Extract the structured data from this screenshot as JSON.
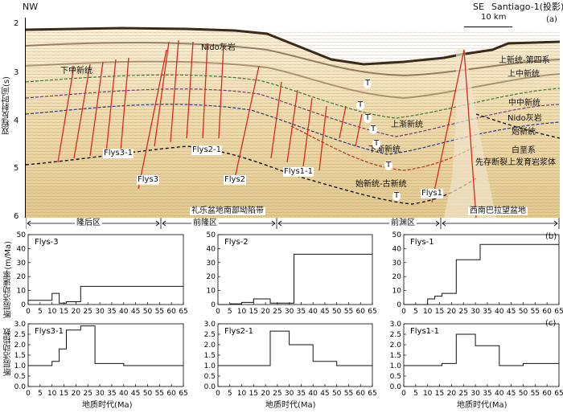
{
  "section_a": {
    "label_nw": "NW",
    "label_se": "SE",
    "label_well": "Santiago-1(投影)",
    "panel_tag": "(a)",
    "scale_label": "10 km",
    "y_axis_label": "双程反射时间(s)",
    "y_ticks": [
      "2",
      "3",
      "4",
      "5",
      "6"
    ],
    "horizon_labels": [
      "上新统-第四系",
      "上中新统",
      "中中新统",
      "Nido灰岩",
      "始新统",
      "白垩系",
      "先存断裂上发育岩浆体"
    ],
    "interior_labels": [
      "Nido灰岩",
      "下中新统",
      "上渐新统",
      "下渐新统",
      "始新统-古新统"
    ],
    "t_labels": [
      "T",
      "T",
      "T",
      "T",
      "T",
      "T",
      "T"
    ],
    "fault_labels": [
      "Flys3-1",
      "Flys3",
      "Flys2-1",
      "Flys2",
      "Flys1-1",
      "Flys1"
    ],
    "zone_labels": [
      "隆后区",
      "前隆区",
      "礼乐盆地南部坳陷带",
      "前渊区",
      "西南巴拉望盆地"
    ]
  },
  "section_b": {
    "panel_tag": "(b)",
    "y_axis_label": "断层活动速率(m/Ma)"
  },
  "section_c": {
    "panel_tag": "(c)",
    "y_axis_label": "断层活动指数",
    "x_axis_label": "地质时代(Ma)"
  },
  "chart_data": [
    {
      "type": "line",
      "title": "Flys-3",
      "panel": "b",
      "x": [
        0,
        10,
        10,
        13,
        13,
        16,
        16,
        22,
        22,
        65
      ],
      "y": [
        3,
        3,
        8,
        8,
        1,
        1,
        2,
        2,
        13,
        13
      ],
      "xlim": [
        0,
        65
      ],
      "ylim": [
        0,
        50
      ],
      "xticks": [
        0,
        5,
        10,
        15,
        20,
        25,
        30,
        35,
        40,
        45,
        50,
        55,
        60,
        65
      ],
      "yticks": [
        0,
        10,
        20,
        30,
        40,
        50
      ]
    },
    {
      "type": "line",
      "title": "Flys-2",
      "panel": "b",
      "x": [
        0,
        5,
        5,
        10,
        10,
        15,
        15,
        22,
        22,
        25,
        25,
        32,
        32,
        65
      ],
      "y": [
        0,
        0,
        0.5,
        0.5,
        1.5,
        1.5,
        4,
        4,
        1,
        1,
        1,
        1,
        36,
        36
      ],
      "xlim": [
        0,
        65
      ],
      "ylim": [
        0,
        50
      ],
      "xticks": [
        0,
        5,
        10,
        15,
        20,
        25,
        30,
        35,
        40,
        45,
        50,
        55,
        60,
        65
      ],
      "yticks": [
        0,
        10,
        20,
        30,
        40,
        50
      ]
    },
    {
      "type": "line",
      "title": "Flys-1",
      "panel": "b",
      "x": [
        0,
        10,
        10,
        13,
        13,
        16,
        16,
        22,
        22,
        32,
        32,
        65
      ],
      "y": [
        0,
        0,
        4,
        4,
        6,
        6,
        8,
        8,
        32,
        32,
        43,
        43
      ],
      "xlim": [
        0,
        65
      ],
      "ylim": [
        0,
        50
      ],
      "xticks": [
        0,
        5,
        10,
        15,
        20,
        25,
        30,
        35,
        40,
        45,
        50,
        55,
        60,
        65
      ],
      "yticks": [
        0,
        10,
        20,
        30,
        40,
        50
      ]
    },
    {
      "type": "line",
      "title": "Flys3-1",
      "panel": "c",
      "x": [
        0,
        10,
        10,
        13,
        13,
        16,
        16,
        22,
        22,
        28,
        28,
        40,
        40,
        50,
        50,
        65
      ],
      "y": [
        1.0,
        1.0,
        1.2,
        1.2,
        1.8,
        1.8,
        2.7,
        2.7,
        2.9,
        2.9,
        1.1,
        1.1,
        1.0,
        1.0,
        1.0,
        1.0
      ],
      "xlim": [
        0,
        65
      ],
      "ylim": [
        0,
        3.0
      ],
      "xticks": [
        0,
        5,
        10,
        15,
        20,
        25,
        30,
        35,
        40,
        45,
        50,
        55,
        60,
        65
      ],
      "yticks": [
        0,
        0.5,
        1.0,
        1.5,
        2.0,
        2.5,
        3.0
      ]
    },
    {
      "type": "line",
      "title": "Flys2-1",
      "panel": "c",
      "x": [
        0,
        22,
        22,
        30,
        30,
        40,
        40,
        50,
        50,
        65
      ],
      "y": [
        1.0,
        1.0,
        2.65,
        2.65,
        2.0,
        2.0,
        1.2,
        1.2,
        1.0,
        1.0
      ],
      "xlim": [
        0,
        65
      ],
      "ylim": [
        0,
        3.0
      ],
      "xticks": [
        0,
        5,
        10,
        15,
        20,
        25,
        30,
        35,
        40,
        45,
        50,
        55,
        60,
        65
      ],
      "yticks": [
        0,
        0.5,
        1.0,
        1.5,
        2.0,
        2.5,
        3.0
      ]
    },
    {
      "type": "line",
      "title": "Flys1-1",
      "panel": "c",
      "x": [
        0,
        16,
        16,
        22,
        22,
        30,
        30,
        40,
        40,
        50,
        50,
        65
      ],
      "y": [
        1.0,
        1.0,
        1.1,
        1.1,
        2.5,
        2.5,
        1.95,
        1.95,
        1.0,
        1.0,
        1.1,
        1.1
      ],
      "xlim": [
        0,
        65
      ],
      "ylim": [
        0,
        3.0
      ],
      "xticks": [
        0,
        5,
        10,
        15,
        20,
        25,
        30,
        35,
        40,
        45,
        50,
        55,
        60,
        65
      ],
      "yticks": [
        0,
        0.5,
        1.0,
        1.5,
        2.0,
        2.5,
        3.0
      ]
    }
  ]
}
